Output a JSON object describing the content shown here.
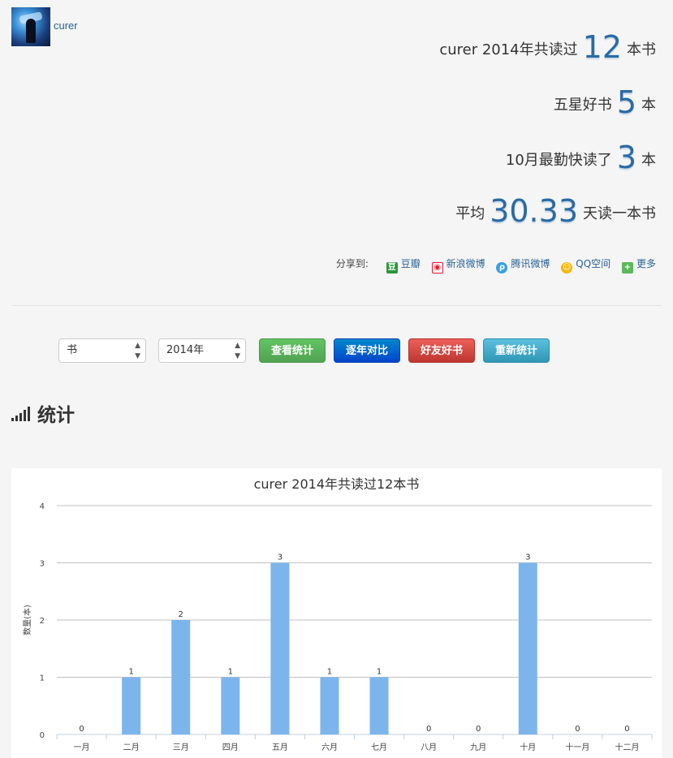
{
  "user": {
    "name": "curer"
  },
  "summary": {
    "line1": {
      "prefix": "curer 2014年共读过",
      "value": "12",
      "suffix": "本书"
    },
    "line2": {
      "prefix": "五星好书",
      "value": "5",
      "suffix": "本"
    },
    "line3": {
      "prefix": "10月最勤快读了",
      "value": "3",
      "suffix": "本"
    },
    "line4": {
      "prefix": "平均",
      "value": "30.33",
      "suffix": "天读一本书"
    }
  },
  "share": {
    "label": "分享到:",
    "items": [
      {
        "label": "豆瓣",
        "icon": "douban-icon",
        "color": "#2e963d"
      },
      {
        "label": "新浪微博",
        "icon": "weibo-icon",
        "color": "#e6162d"
      },
      {
        "label": "腾讯微博",
        "icon": "tencent-weibo-icon",
        "color": "#3b9ee0"
      },
      {
        "label": "QQ空间",
        "icon": "qzone-icon",
        "color": "#f5b800"
      },
      {
        "label": "更多",
        "icon": "plus-icon",
        "color": "#5cb85c"
      }
    ]
  },
  "controls": {
    "type_select": "书",
    "year_select": "2014年",
    "view_stats": "查看统计",
    "compare_years": "逐年对比",
    "friend_books": "好友好书",
    "recount": "重新统计"
  },
  "section": {
    "title": "统计"
  },
  "colors": {
    "bar": "#7cb5ec",
    "grid": "#c0c0c0"
  },
  "chart_data": {
    "type": "bar",
    "title": "curer 2014年共读过12本书",
    "ylabel": "数量(本)",
    "xlabel": "",
    "ylim": [
      0,
      4
    ],
    "yticks": [
      0,
      1,
      2,
      3,
      4
    ],
    "categories": [
      "一月",
      "二月",
      "三月",
      "四月",
      "五月",
      "六月",
      "七月",
      "八月",
      "九月",
      "十月",
      "十一月",
      "十二月"
    ],
    "values": [
      0,
      1,
      2,
      1,
      3,
      1,
      1,
      0,
      0,
      3,
      0,
      0
    ],
    "data_labels": true,
    "grid": true,
    "legend": "none"
  }
}
